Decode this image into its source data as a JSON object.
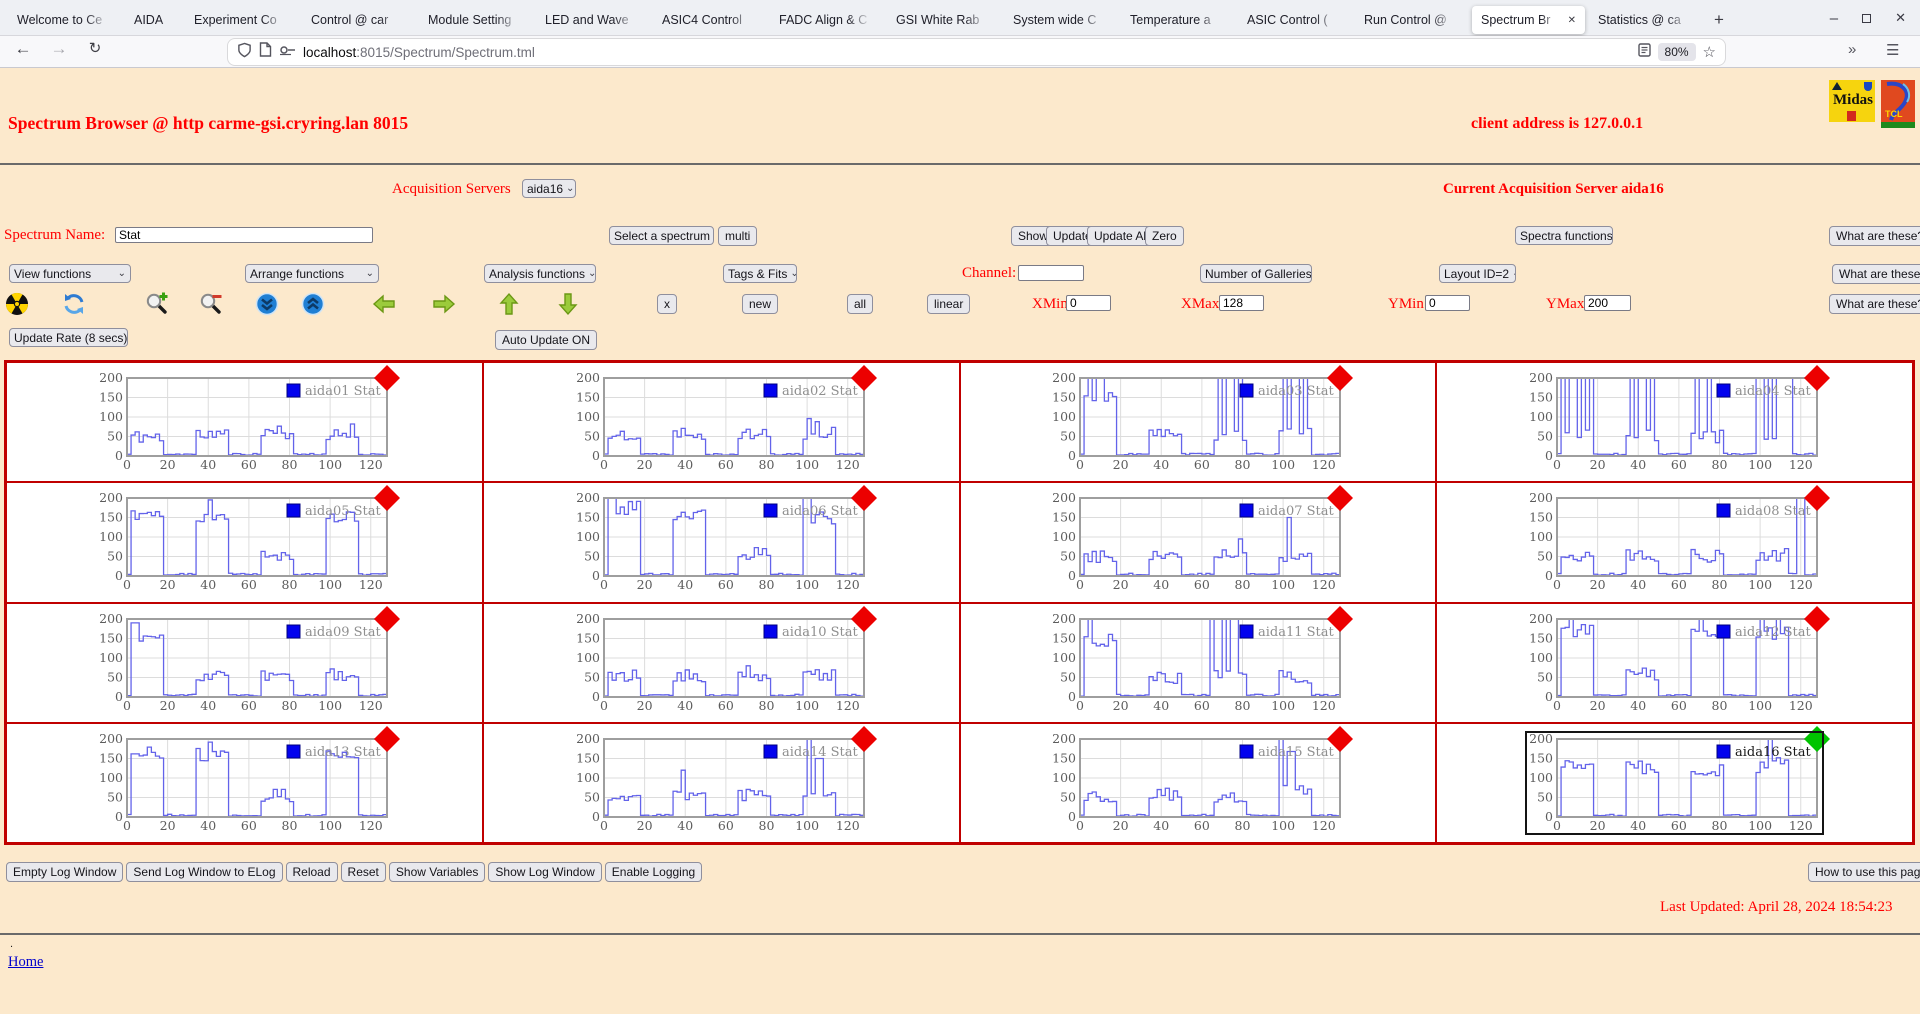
{
  "browser": {
    "tabs": [
      "Welcome to Ce",
      "AIDA",
      "Experiment Co",
      "Control @ car",
      "Module Setting",
      "LED and Wave",
      "ASIC4 Control",
      "FADC Align & C",
      "GSI White Rab",
      "System wide C",
      "Temperature a",
      "ASIC Control (",
      "Run Control @",
      "Spectrum Br",
      "Statistics @ ca"
    ],
    "active_tab_index": 13,
    "new_tab_button": "+",
    "window_controls": {
      "minimize": "–",
      "close": "✕"
    },
    "nav": {
      "back": "←",
      "forward": "→",
      "reload": "↻",
      "overflow": "»",
      "menu": "☰"
    },
    "url_host": "localhost",
    "url_rest": ":8015/Spectrum/Spectrum.tml",
    "zoom_level": "80%"
  },
  "page": {
    "title": "Spectrum Browser @ http carme-gsi.cryring.lan 8015",
    "client_address": "client address is 127.0.0.1",
    "logos": {
      "midas": "Midas",
      "tcl": "TCL"
    },
    "acquisition": {
      "label": "Acquisition Servers",
      "selected": "aida16",
      "current": "Current Acquisition Server aida16"
    },
    "spectrum_row": {
      "name_label": "Spectrum Name:",
      "name_value": "Stat",
      "select_spectrum": "Select a spectrum",
      "multi": "multi",
      "show": "Show",
      "update": "Update",
      "update_all": "Update All",
      "zero": "Zero",
      "spectra_functions": "Spectra functions",
      "what": "What are these?"
    },
    "functions_row": {
      "view": "View functions",
      "arrange": "Arrange functions",
      "analysis": "Analysis functions",
      "tags": "Tags & Fits",
      "channel_label": "Channel:",
      "channel_value": "",
      "galleries": "Number of Galleries",
      "layout": "Layout ID=2",
      "what": "What are these?"
    },
    "tools_row": {
      "x": "x",
      "new": "new",
      "all": "all",
      "linear": "linear",
      "xmin_label": "XMin",
      "xmin": "0",
      "xmax_label": "XMax",
      "xmax": "128",
      "ymin_label": "YMin",
      "ymin": "0",
      "ymax_label": "YMax",
      "ymax": "200",
      "what": "What are these?"
    },
    "tool_icons": [
      "radiation",
      "refresh",
      "zoom-in",
      "zoom-out",
      "scroll-down",
      "scroll-up",
      "pan-left",
      "pan-right",
      "pan-up",
      "pan-down"
    ],
    "update_row": {
      "rate": "Update Rate (8 secs)",
      "auto": "Auto Update ON"
    },
    "log_buttons": [
      "Empty Log Window",
      "Send Log Window to ELog",
      "Reload",
      "Reset",
      "Show Variables",
      "Show Log Window",
      "Enable Logging"
    ],
    "howto_button": "How to use this page",
    "last_updated": "Last Updated: April 28, 2024 18:54:23",
    "dot": ".",
    "home_link": "Home"
  },
  "chart_data": {
    "type": "line",
    "xticks": [
      0,
      20,
      40,
      60,
      80,
      100,
      120
    ],
    "yticks": [
      0,
      50,
      100,
      150,
      200
    ],
    "xmax": 128,
    "ymax": 200,
    "plot": {
      "background": "#ffffff",
      "grid_color": "#dcdcdc",
      "border_color": "#9e9e9e",
      "line_color": "#6363ea",
      "axis_text_color": "#5c5c5c",
      "legend_square": "#0202ee",
      "legend_square_border": "#000080",
      "legend_text_color": "#8f8f8f",
      "legend_selected_text_color": "#1a1a1a",
      "diamond_red": "#ec0000",
      "diamond_green": "#00c400"
    },
    "charts": [
      {
        "legend": "aida01 Stat",
        "seed": 11,
        "diamond": "red",
        "selected": false,
        "bursts": [
          [
            2,
            17,
            50
          ],
          [
            33,
            49,
            55
          ],
          [
            65,
            81,
            60
          ],
          [
            97,
            113,
            55
          ]
        ],
        "spikes": [
          [
            110,
            82
          ]
        ]
      },
      {
        "legend": "aida02 Stat",
        "seed": 22,
        "diamond": "red",
        "selected": false,
        "bursts": [
          [
            2,
            17,
            55
          ],
          [
            33,
            49,
            60
          ],
          [
            65,
            81,
            55
          ],
          [
            97,
            113,
            60
          ]
        ],
        "spikes": [
          [
            100,
            96
          ],
          [
            104,
            88
          ]
        ]
      },
      {
        "legend": "aida03 Stat",
        "seed": 33,
        "diamond": "red",
        "selected": false,
        "bursts": [
          [
            2,
            17,
            150
          ],
          [
            33,
            49,
            55
          ],
          [
            65,
            81,
            55
          ],
          [
            97,
            113,
            58
          ]
        ],
        "spikes": [
          [
            4,
            200
          ],
          [
            9,
            200
          ],
          [
            68,
            200
          ],
          [
            73,
            200
          ],
          [
            78,
            200
          ],
          [
            100,
            200
          ],
          [
            105,
            200
          ],
          [
            110,
            200
          ]
        ]
      },
      {
        "legend": "aida04 Stat",
        "seed": 44,
        "diamond": "red",
        "selected": false,
        "bursts": [
          [
            2,
            17,
            55
          ],
          [
            33,
            49,
            55
          ],
          [
            65,
            81,
            50
          ],
          [
            97,
            113,
            55
          ]
        ],
        "spikes": [
          [
            2,
            200
          ],
          [
            7,
            200
          ],
          [
            12,
            200
          ],
          [
            16,
            200
          ],
          [
            36,
            200
          ],
          [
            41,
            200
          ],
          [
            46,
            200
          ],
          [
            68,
            200
          ],
          [
            74,
            200
          ],
          [
            99,
            200
          ],
          [
            104,
            200
          ],
          [
            109,
            200
          ],
          [
            113,
            200
          ]
        ]
      },
      {
        "legend": "aida05 Stat",
        "seed": 55,
        "diamond": "red",
        "selected": false,
        "bursts": [
          [
            2,
            17,
            160
          ],
          [
            33,
            49,
            150
          ],
          [
            65,
            81,
            55
          ],
          [
            97,
            113,
            150
          ]
        ],
        "spikes": [
          [
            40,
            195
          ]
        ]
      },
      {
        "legend": "aida06 Stat",
        "seed": 66,
        "diamond": "red",
        "selected": false,
        "bursts": [
          [
            2,
            17,
            175
          ],
          [
            33,
            49,
            160
          ],
          [
            65,
            81,
            58
          ],
          [
            97,
            113,
            150
          ]
        ],
        "spikes": [
          [
            3,
            200
          ],
          [
            99,
            200
          ]
        ]
      },
      {
        "legend": "aida07 Stat",
        "seed": 77,
        "diamond": "red",
        "selected": false,
        "bursts": [
          [
            2,
            17,
            50
          ],
          [
            33,
            49,
            52
          ],
          [
            65,
            81,
            55
          ],
          [
            97,
            113,
            52
          ]
        ],
        "spikes": [
          [
            78,
            95
          ],
          [
            102,
            150
          ]
        ]
      },
      {
        "legend": "aida08 Stat",
        "seed": 88,
        "diamond": "red",
        "selected": false,
        "bursts": [
          [
            2,
            17,
            52
          ],
          [
            33,
            49,
            50
          ],
          [
            65,
            81,
            52
          ],
          [
            97,
            113,
            55
          ]
        ],
        "spikes": [
          [
            119,
            200
          ]
        ]
      },
      {
        "legend": "aida09 Stat",
        "seed": 99,
        "diamond": "red",
        "selected": false,
        "bursts": [
          [
            2,
            17,
            160
          ],
          [
            33,
            49,
            52
          ],
          [
            65,
            81,
            50
          ],
          [
            97,
            113,
            55
          ]
        ],
        "spikes": [
          [
            3,
            190
          ]
        ]
      },
      {
        "legend": "aida10 Stat",
        "seed": 110,
        "diamond": "red",
        "selected": false,
        "bursts": [
          [
            2,
            17,
            52
          ],
          [
            33,
            49,
            55
          ],
          [
            65,
            81,
            52
          ],
          [
            97,
            113,
            55
          ]
        ],
        "spikes": [
          [
            70,
            80
          ]
        ]
      },
      {
        "legend": "aida11 Stat",
        "seed": 121,
        "diamond": "red",
        "selected": false,
        "bursts": [
          [
            2,
            17,
            145
          ],
          [
            33,
            49,
            52
          ],
          [
            65,
            81,
            55
          ],
          [
            97,
            113,
            52
          ]
        ],
        "spikes": [
          [
            4,
            200
          ],
          [
            64,
            200
          ],
          [
            70,
            200
          ],
          [
            75,
            200
          ]
        ]
      },
      {
        "legend": "aida12 Stat",
        "seed": 132,
        "diamond": "red",
        "selected": false,
        "bursts": [
          [
            2,
            17,
            170
          ],
          [
            33,
            49,
            58
          ],
          [
            65,
            81,
            160
          ],
          [
            97,
            113,
            165
          ]
        ],
        "spikes": [
          [
            6,
            200
          ],
          [
            70,
            200
          ],
          [
            100,
            200
          ],
          [
            108,
            200
          ]
        ]
      },
      {
        "legend": "aida13 Stat",
        "seed": 143,
        "diamond": "red",
        "selected": false,
        "bursts": [
          [
            2,
            17,
            165
          ],
          [
            33,
            49,
            160
          ],
          [
            65,
            81,
            55
          ],
          [
            97,
            113,
            158
          ]
        ],
        "spikes": [
          [
            40,
            192
          ]
        ]
      },
      {
        "legend": "aida14 Stat",
        "seed": 154,
        "diamond": "red",
        "selected": false,
        "bursts": [
          [
            2,
            17,
            52
          ],
          [
            33,
            49,
            55
          ],
          [
            65,
            81,
            58
          ],
          [
            97,
            113,
            55
          ]
        ],
        "spikes": [
          [
            38,
            120
          ],
          [
            100,
            200
          ],
          [
            105,
            150
          ]
        ]
      },
      {
        "legend": "aida15 Stat",
        "seed": 165,
        "diamond": "red",
        "selected": false,
        "bursts": [
          [
            2,
            17,
            55
          ],
          [
            33,
            49,
            58
          ],
          [
            65,
            81,
            55
          ],
          [
            97,
            113,
            70
          ]
        ],
        "spikes": [
          [
            98,
            200
          ],
          [
            103,
            168
          ]
        ]
      },
      {
        "legend": "aida16 Stat",
        "seed": 176,
        "diamond": "green",
        "selected": true,
        "bursts": [
          [
            2,
            17,
            140
          ],
          [
            33,
            49,
            128
          ],
          [
            65,
            81,
            122
          ],
          [
            97,
            113,
            130
          ]
        ],
        "spikes": [
          [
            104,
            200
          ],
          [
            108,
            152
          ],
          [
            112,
            146
          ]
        ]
      }
    ]
  },
  "colors": {
    "page_bg": "#fce9cc",
    "red_text": "#ff0000",
    "grid_border": "#c00000"
  }
}
